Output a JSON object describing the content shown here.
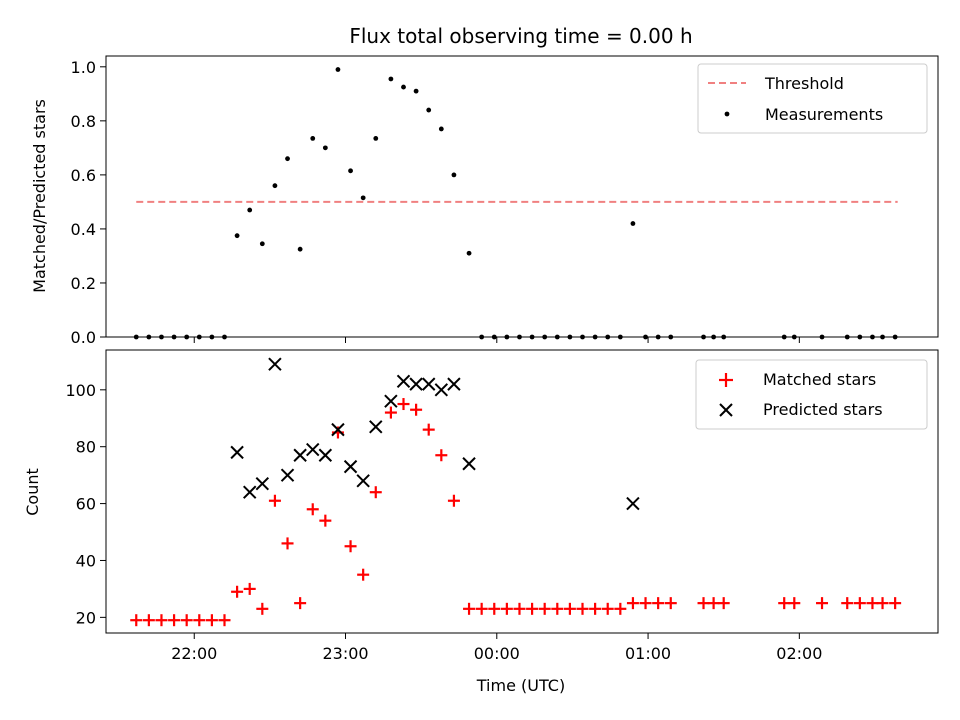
{
  "chart_data": [
    {
      "type": "scatter",
      "title": "Flux total observing time = 0.00 h",
      "xlabel": "",
      "ylabel": "Matched/Predicted stars",
      "xlim": [
        "21:25",
        "02:55"
      ],
      "ylim": [
        0,
        1.04
      ],
      "yticks": [
        0.0,
        0.2,
        0.4,
        0.6,
        0.8,
        1.0
      ],
      "ytick_labels": [
        "0.0",
        "0.2",
        "0.4",
        "0.6",
        "0.8",
        "1.0"
      ],
      "legend_position": "top-right",
      "grid": false,
      "threshold": {
        "name": "Threshold",
        "value": 0.5,
        "x_start": "21:37",
        "x_end": "02:39",
        "color": "#f08080"
      },
      "series": [
        {
          "name": "Measurements",
          "color": "#000000",
          "marker": "dot",
          "points": [
            [
              "21:37",
              0.0
            ],
            [
              "21:42",
              0.0
            ],
            [
              "21:47",
              0.0
            ],
            [
              "21:52",
              0.0
            ],
            [
              "21:57",
              0.0
            ],
            [
              "22:02",
              0.0
            ],
            [
              "22:07",
              0.0
            ],
            [
              "22:12",
              0.0
            ],
            [
              "22:17",
              0.375
            ],
            [
              "22:22",
              0.47
            ],
            [
              "22:27",
              0.345
            ],
            [
              "22:32",
              0.56
            ],
            [
              "22:37",
              0.66
            ],
            [
              "22:42",
              0.325
            ],
            [
              "22:47",
              0.735
            ],
            [
              "22:52",
              0.7
            ],
            [
              "22:57",
              0.99
            ],
            [
              "23:02",
              0.615
            ],
            [
              "23:07",
              0.515
            ],
            [
              "23:12",
              0.735
            ],
            [
              "23:18",
              0.955
            ],
            [
              "23:23",
              0.925
            ],
            [
              "23:28",
              0.91
            ],
            [
              "23:33",
              0.84
            ],
            [
              "23:38",
              0.77
            ],
            [
              "23:43",
              0.6
            ],
            [
              "23:49",
              0.31
            ],
            [
              "23:54",
              0.0
            ],
            [
              "23:59",
              0.0
            ],
            [
              "00:04",
              0.0
            ],
            [
              "00:09",
              0.0
            ],
            [
              "00:14",
              0.0
            ],
            [
              "00:19",
              0.0
            ],
            [
              "00:24",
              0.0
            ],
            [
              "00:29",
              0.0
            ],
            [
              "00:34",
              0.0
            ],
            [
              "00:39",
              0.0
            ],
            [
              "00:44",
              0.0
            ],
            [
              "00:49",
              0.0
            ],
            [
              "00:54",
              0.42
            ],
            [
              "00:59",
              0.0
            ],
            [
              "01:04",
              0.0
            ],
            [
              "01:09",
              0.0
            ],
            [
              "01:22",
              0.0
            ],
            [
              "01:26",
              0.0
            ],
            [
              "01:30",
              0.0
            ],
            [
              "01:54",
              0.0
            ],
            [
              "01:58",
              0.0
            ],
            [
              "02:09",
              0.0
            ],
            [
              "02:19",
              0.0
            ],
            [
              "02:24",
              0.0
            ],
            [
              "02:29",
              0.0
            ],
            [
              "02:33",
              0.0
            ],
            [
              "02:38",
              0.0
            ]
          ]
        }
      ]
    },
    {
      "type": "scatter",
      "title": "",
      "xlabel": "Time (UTC)",
      "ylabel": "Count",
      "xlim": [
        "21:25",
        "02:55"
      ],
      "ylim": [
        14.5,
        114
      ],
      "xticks": [
        "22:00",
        "23:00",
        "00:00",
        "01:00",
        "02:00"
      ],
      "yticks": [
        20,
        40,
        60,
        80,
        100
      ],
      "ytick_labels": [
        "20",
        "40",
        "60",
        "80",
        "100"
      ],
      "legend_position": "top-right",
      "grid": false,
      "series": [
        {
          "name": "Matched stars",
          "color": "#ff0000",
          "marker": "plus",
          "points": [
            [
              "21:37",
              19
            ],
            [
              "21:42",
              19
            ],
            [
              "21:47",
              19
            ],
            [
              "21:52",
              19
            ],
            [
              "21:57",
              19
            ],
            [
              "22:02",
              19
            ],
            [
              "22:07",
              19
            ],
            [
              "22:12",
              19
            ],
            [
              "22:17",
              29
            ],
            [
              "22:22",
              30
            ],
            [
              "22:27",
              23
            ],
            [
              "22:32",
              61
            ],
            [
              "22:37",
              46
            ],
            [
              "22:42",
              25
            ],
            [
              "22:47",
              58
            ],
            [
              "22:52",
              54
            ],
            [
              "22:57",
              85
            ],
            [
              "23:02",
              45
            ],
            [
              "23:07",
              35
            ],
            [
              "23:12",
              64
            ],
            [
              "23:18",
              92
            ],
            [
              "23:23",
              95
            ],
            [
              "23:28",
              93
            ],
            [
              "23:33",
              86
            ],
            [
              "23:38",
              77
            ],
            [
              "23:43",
              61
            ],
            [
              "23:49",
              23
            ],
            [
              "23:54",
              23
            ],
            [
              "23:59",
              23
            ],
            [
              "00:04",
              23
            ],
            [
              "00:09",
              23
            ],
            [
              "00:14",
              23
            ],
            [
              "00:19",
              23
            ],
            [
              "00:24",
              23
            ],
            [
              "00:29",
              23
            ],
            [
              "00:34",
              23
            ],
            [
              "00:39",
              23
            ],
            [
              "00:44",
              23
            ],
            [
              "00:49",
              23
            ],
            [
              "00:54",
              25
            ],
            [
              "00:59",
              25
            ],
            [
              "01:04",
              25
            ],
            [
              "01:09",
              25
            ],
            [
              "01:22",
              25
            ],
            [
              "01:26",
              25
            ],
            [
              "01:30",
              25
            ],
            [
              "01:54",
              25
            ],
            [
              "01:58",
              25
            ],
            [
              "02:09",
              25
            ],
            [
              "02:19",
              25
            ],
            [
              "02:24",
              25
            ],
            [
              "02:29",
              25
            ],
            [
              "02:33",
              25
            ],
            [
              "02:38",
              25
            ]
          ]
        },
        {
          "name": "Predicted stars",
          "color": "#000000",
          "marker": "cross",
          "points": [
            [
              "22:17",
              78
            ],
            [
              "22:22",
              64
            ],
            [
              "22:27",
              67
            ],
            [
              "22:32",
              109
            ],
            [
              "22:37",
              70
            ],
            [
              "22:42",
              77
            ],
            [
              "22:47",
              79
            ],
            [
              "22:52",
              77
            ],
            [
              "22:57",
              86
            ],
            [
              "23:02",
              73
            ],
            [
              "23:07",
              68
            ],
            [
              "23:12",
              87
            ],
            [
              "23:18",
              96
            ],
            [
              "23:23",
              103
            ],
            [
              "23:28",
              102
            ],
            [
              "23:33",
              102
            ],
            [
              "23:38",
              100
            ],
            [
              "23:43",
              102
            ],
            [
              "23:49",
              74
            ],
            [
              "00:54",
              60
            ]
          ]
        }
      ]
    }
  ]
}
